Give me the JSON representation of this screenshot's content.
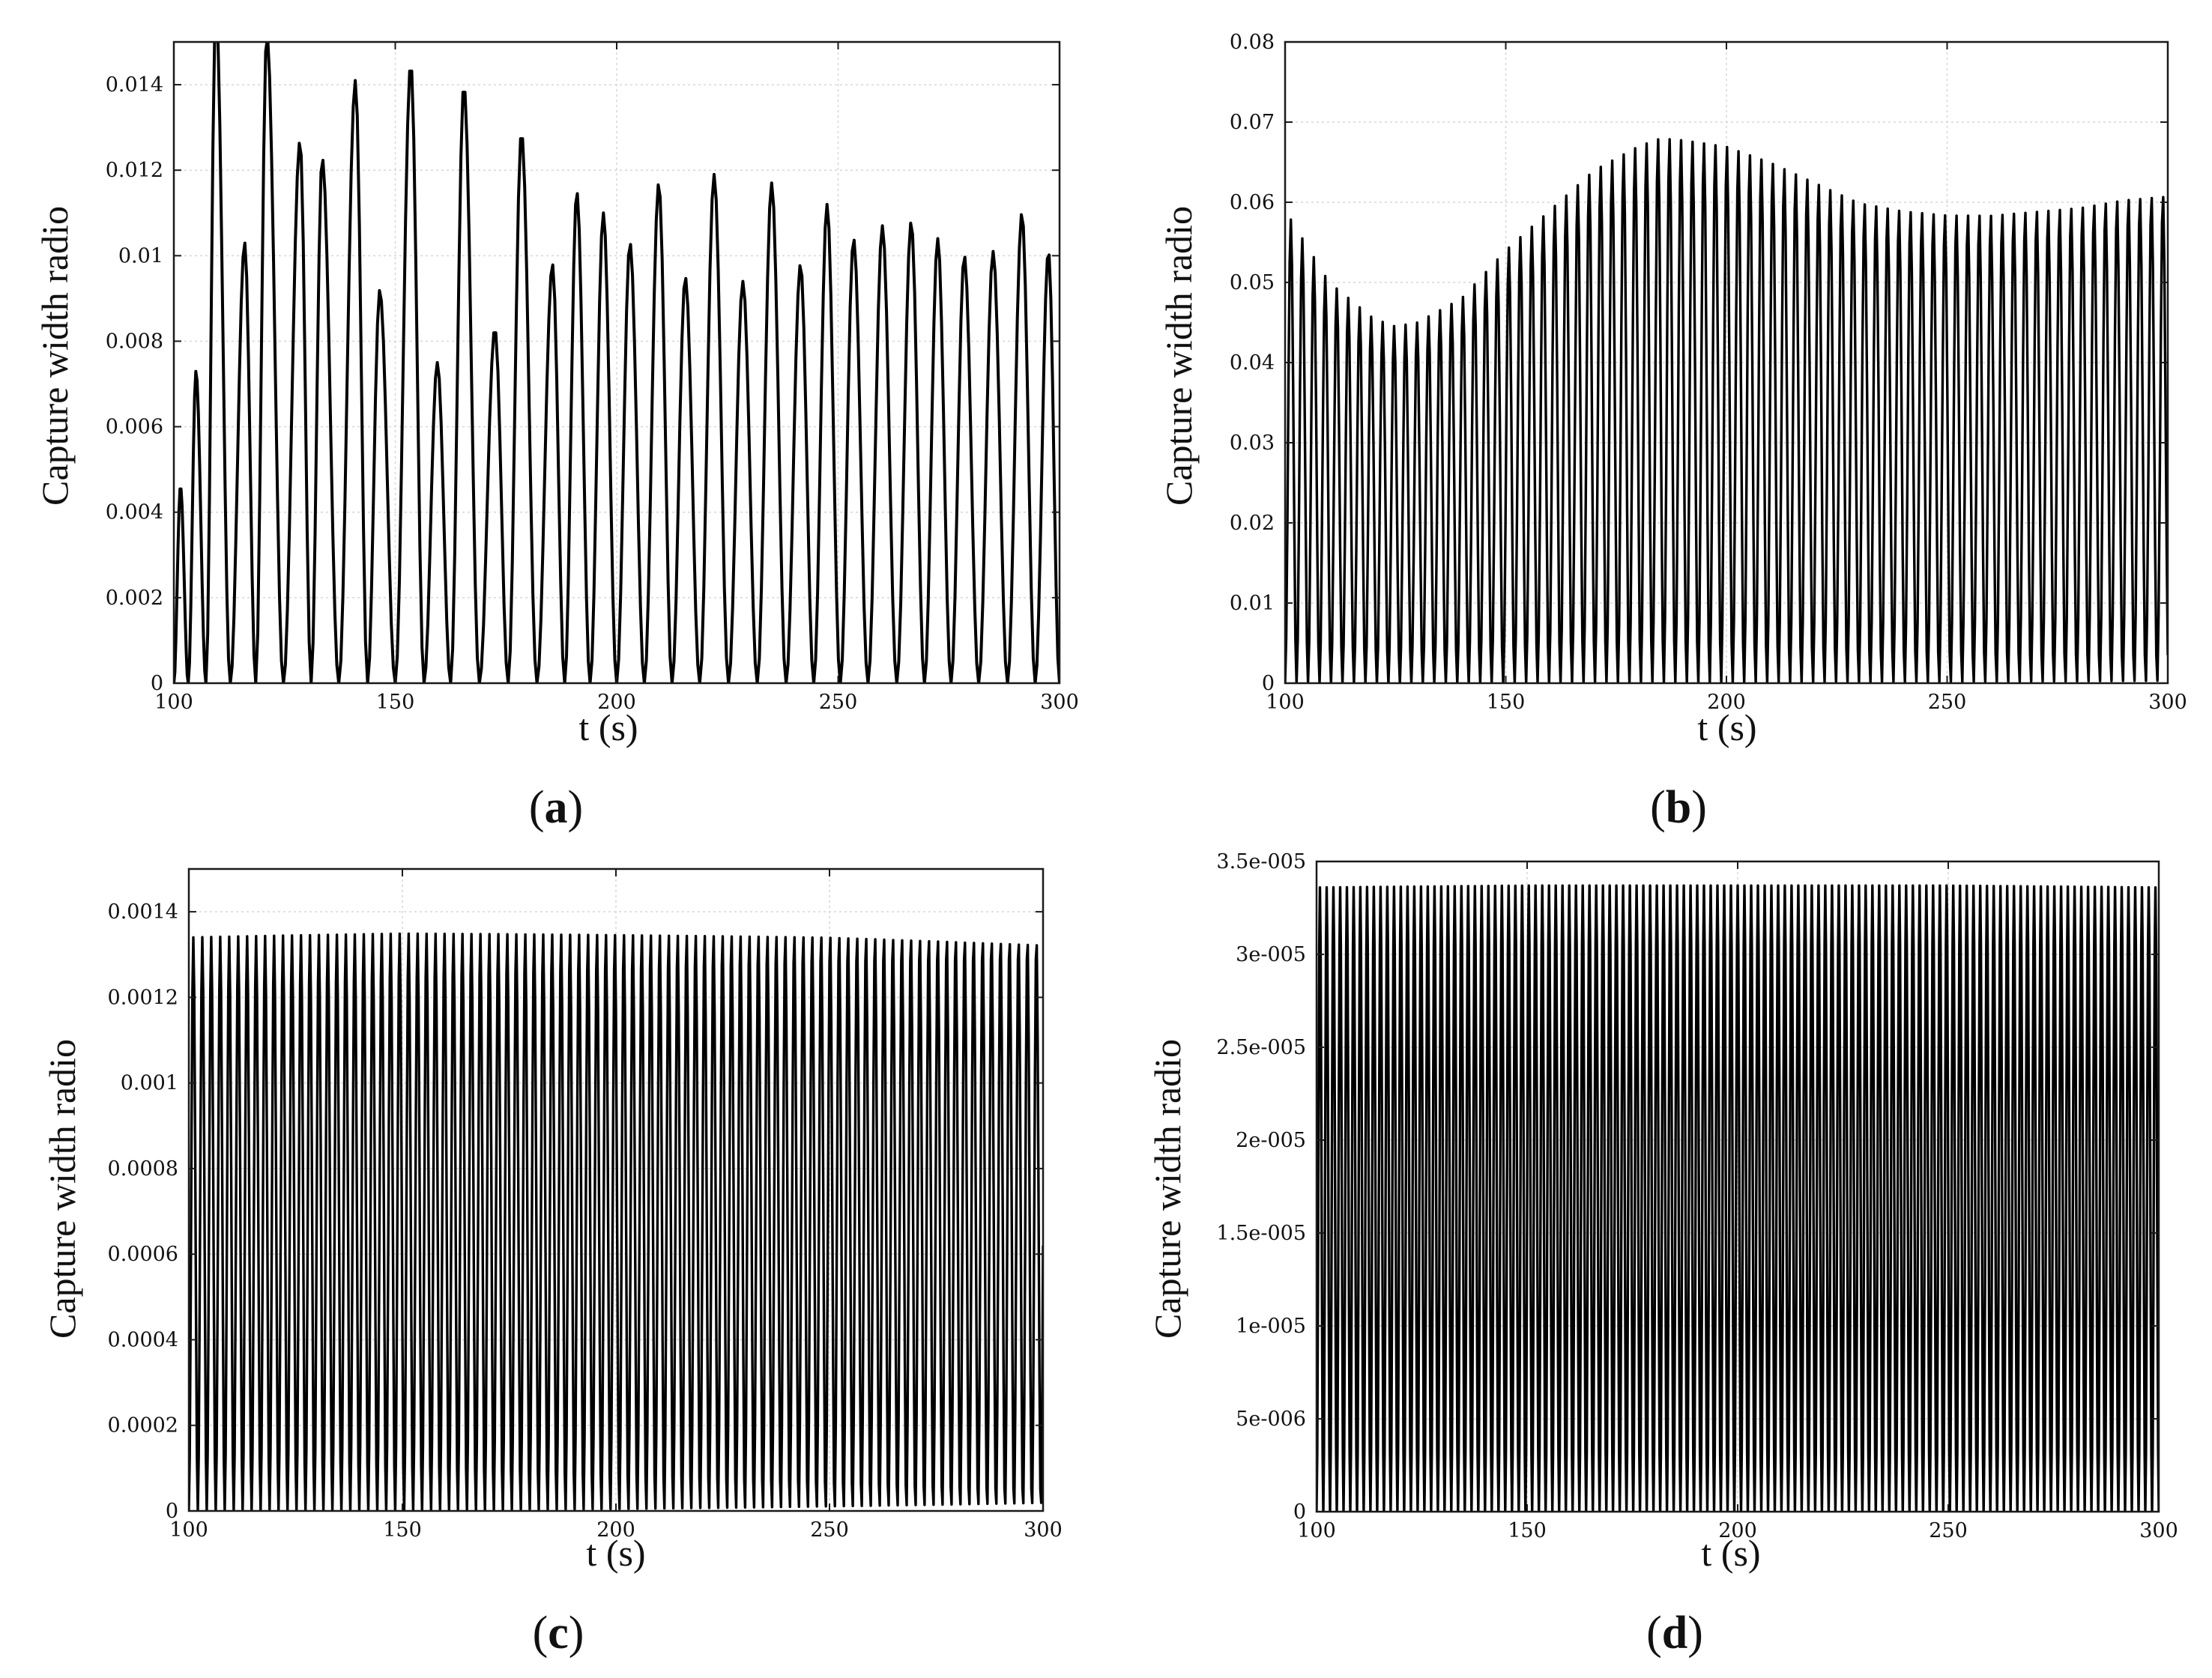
{
  "chart_data": [
    {
      "panel": "a",
      "caption_letter": "a",
      "type": "line",
      "title": "",
      "xlabel": "t (s)",
      "ylabel": "Capture width radio",
      "xlim": [
        100,
        300
      ],
      "ylim": [
        0,
        0.015
      ],
      "xticks": [
        100,
        150,
        200,
        250,
        300
      ],
      "xtick_labels": [
        "100",
        "150",
        "200",
        "250",
        "300"
      ],
      "yticks": [
        0,
        0.002,
        0.004,
        0.006,
        0.008,
        0.01,
        0.012,
        0.014
      ],
      "ytick_labels": [
        "0",
        "0.002",
        "0.004",
        "0.006",
        "0.008",
        "0.01",
        "0.012",
        "0.014"
      ],
      "grid": true,
      "series": [
        {
          "color": "#000000",
          "description_values": "oscillation peaks (t, peak value)",
          "peaks_t": [
            101.5,
            105,
            109.5,
            116,
            121,
            128.5,
            133.5,
            141,
            146.5,
            153.5,
            159.5,
            165.5,
            172.5,
            178.5,
            185.5,
            191,
            197,
            203,
            209.5,
            215.5,
            222,
            228.5,
            235,
            241.5,
            247.5,
            253.5,
            260,
            266.5,
            272.5,
            278.5,
            285,
            291.5,
            297.5
          ],
          "peaks_y": [
            0.0046,
            0.0073,
            0.0158,
            0.0103,
            0.0152,
            0.0127,
            0.0123,
            0.0141,
            0.0092,
            0.0145,
            0.0075,
            0.014,
            0.0083,
            0.0129,
            0.0098,
            0.0115,
            0.011,
            0.0103,
            0.0117,
            0.0095,
            0.0119,
            0.0094,
            0.0117,
            0.0098,
            0.0112,
            0.0104,
            0.0107,
            0.0108,
            0.0104,
            0.01,
            0.0101,
            0.011,
            0.0101
          ]
        }
      ]
    },
    {
      "panel": "b",
      "caption_letter": "b",
      "type": "line",
      "title": "",
      "xlabel": "t (s)",
      "ylabel": "Capture width radio",
      "xlim": [
        100,
        300
      ],
      "ylim": [
        0,
        0.08
      ],
      "xticks": [
        100,
        150,
        200,
        250,
        300
      ],
      "xtick_labels": [
        "100",
        "150",
        "200",
        "250",
        "300"
      ],
      "yticks": [
        0,
        0.01,
        0.02,
        0.03,
        0.04,
        0.05,
        0.06,
        0.07,
        0.08
      ],
      "ytick_labels": [
        "0",
        "0.01",
        "0.02",
        "0.03",
        "0.04",
        "0.05",
        "0.06",
        "0.07",
        "0.08"
      ],
      "grid": true,
      "series": [
        {
          "color": "#000000",
          "oscillation_period_s": 2.6,
          "envelope_t": [
            100,
            110,
            120,
            125,
            130,
            140,
            150,
            160,
            170,
            180,
            185,
            190,
            200,
            210,
            220,
            230,
            240,
            250,
            260,
            270,
            280,
            290,
            300
          ],
          "envelope_y": [
            0.059,
            0.05,
            0.0455,
            0.0445,
            0.045,
            0.048,
            0.054,
            0.059,
            0.064,
            0.067,
            0.068,
            0.0678,
            0.067,
            0.065,
            0.0625,
            0.06,
            0.059,
            0.0585,
            0.0585,
            0.059,
            0.0595,
            0.0605,
            0.061
          ]
        }
      ]
    },
    {
      "panel": "c",
      "caption_letter": "c",
      "type": "line",
      "title": "",
      "xlabel": "t (s)",
      "ylabel": "Capture width radio",
      "xlim": [
        100,
        300
      ],
      "ylim": [
        0,
        0.0015
      ],
      "xticks": [
        100,
        150,
        200,
        250,
        300
      ],
      "xtick_labels": [
        "100",
        "150",
        "200",
        "250",
        "300"
      ],
      "yticks": [
        0,
        0.0002,
        0.0004,
        0.0006,
        0.0008,
        0.001,
        0.0012,
        0.0014
      ],
      "ytick_labels": [
        "0",
        "0.0002",
        "0.0004",
        "0.0006",
        "0.0008",
        "0.001",
        "0.0012",
        "0.0014"
      ],
      "grid": true,
      "series": [
        {
          "color": "#000000",
          "oscillation_period_s": 2.1,
          "envelope_t": [
            100,
            150,
            200,
            250,
            300
          ],
          "envelope_y": [
            0.00134,
            0.00135,
            0.00135,
            0.00135,
            0.00134
          ]
        }
      ]
    },
    {
      "panel": "d",
      "caption_letter": "d",
      "type": "line",
      "title": "",
      "xlabel": "t (s)",
      "ylabel": "Capture width radio",
      "xlim": [
        100,
        300
      ],
      "ylim": [
        0,
        3.5e-05
      ],
      "xticks": [
        100,
        150,
        200,
        250,
        300
      ],
      "xtick_labels": [
        "100",
        "150",
        "200",
        "250",
        "300"
      ],
      "yticks": [
        0,
        5e-06,
        1e-05,
        1.5e-05,
        2e-05,
        2.5e-05,
        3e-05,
        3.5e-05
      ],
      "ytick_labels": [
        "0",
        "5e-006",
        "1e-005",
        "1.5e-005",
        "2e-005",
        "2.5e-005",
        "3e-005",
        "3.5e-005"
      ],
      "grid": true,
      "series": [
        {
          "color": "#000000",
          "oscillation_period_s": 1.6,
          "envelope_t": [
            100,
            150,
            200,
            250,
            300
          ],
          "envelope_y": [
            3.36e-05,
            3.37e-05,
            3.37e-05,
            3.37e-05,
            3.36e-05
          ]
        }
      ]
    }
  ]
}
